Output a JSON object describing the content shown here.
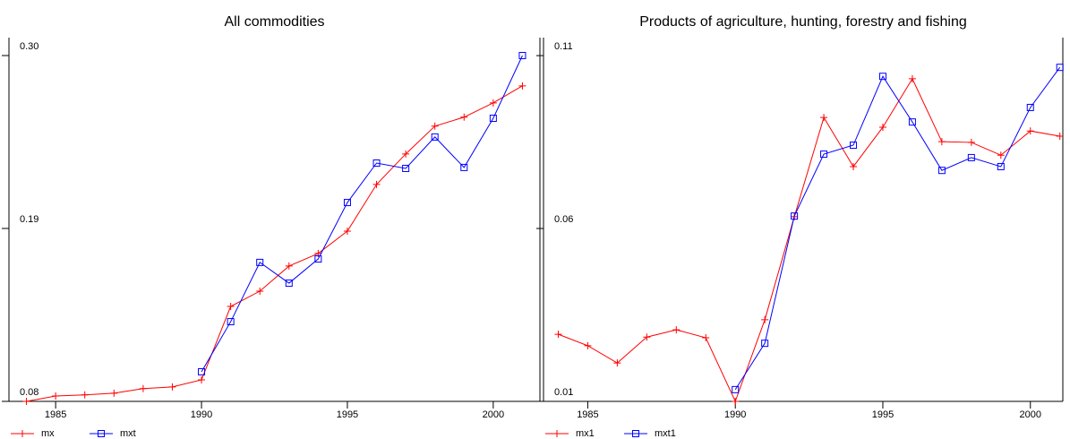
{
  "chart_data": [
    {
      "type": "line",
      "title": "All commodities",
      "x": [
        1984,
        1985,
        1986,
        1987,
        1988,
        1989,
        1990,
        1991,
        1992,
        1993,
        1994,
        1995,
        1996,
        1997,
        1998,
        1999,
        2000,
        2001
      ],
      "series": [
        {
          "name": "mx",
          "color": "#ff0000",
          "marker": "plus",
          "values": [
            0.08,
            0.0834,
            0.0841,
            0.0852,
            0.0881,
            0.0892,
            0.0937,
            0.1404,
            0.1501,
            0.1661,
            0.1741,
            0.1883,
            0.218,
            0.2374,
            0.2551,
            0.2608,
            0.2699,
            0.2807
          ]
        },
        {
          "name": "mxt",
          "color": "#0000ff",
          "marker": "square",
          "values": [
            null,
            null,
            null,
            null,
            null,
            null,
            0.0988,
            0.1307,
            0.1684,
            0.1552,
            0.1706,
            0.2065,
            0.2316,
            0.2282,
            0.2482,
            0.2288,
            0.2601,
            0.3
          ]
        }
      ],
      "xlim": [
        1983.4,
        2001.6
      ],
      "xticks": [
        1985,
        1990,
        1995,
        2000
      ],
      "ylim": [
        0.08,
        0.3114
      ],
      "yticks": [
        0.08,
        0.19,
        {
          "value": 0.3,
          "label": "0.30"
        }
      ]
    },
    {
      "type": "line",
      "title": "Products of agriculture, hunting, forestry and fishing",
      "x": [
        1984,
        1985,
        1986,
        1987,
        1988,
        1989,
        1990,
        1991,
        1992,
        1993,
        1994,
        1995,
        1996,
        1997,
        1998,
        1999,
        2000,
        2001
      ],
      "series": [
        {
          "name": "mx1",
          "color": "#ff0000",
          "marker": "plus",
          "values": [
            0.0294,
            0.0261,
            0.0211,
            0.0286,
            0.0307,
            0.0284,
            0.01,
            0.0336,
            0.0634,
            0.0921,
            0.0779,
            0.0893,
            0.1033,
            0.0851,
            0.0849,
            0.0812,
            0.0882,
            0.0867
          ]
        },
        {
          "name": "mxt1",
          "color": "#0000ff",
          "marker": "square",
          "values": [
            null,
            null,
            null,
            null,
            null,
            null,
            0.0134,
            0.0268,
            0.0636,
            0.0815,
            0.0841,
            0.104,
            0.0908,
            0.0768,
            0.0805,
            0.0779,
            0.095,
            0.1066
          ]
        }
      ],
      "xlim": [
        1983.5,
        2001.1
      ],
      "xticks": [
        1985,
        1990,
        1995,
        2000
      ],
      "ylim": [
        0.01,
        0.1152
      ],
      "yticks": [
        0.01,
        0.06,
        0.11
      ]
    }
  ]
}
